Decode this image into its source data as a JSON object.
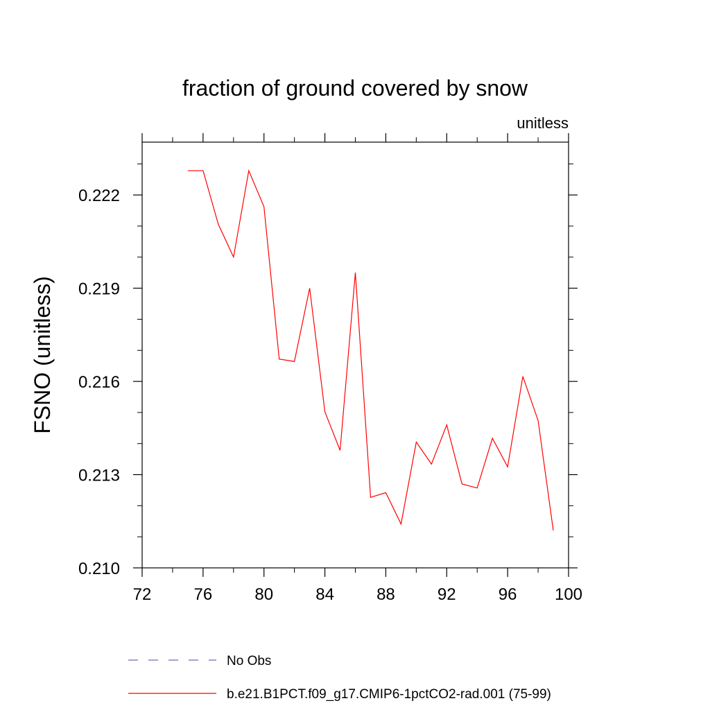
{
  "chart_data": {
    "type": "line",
    "title": "fraction of ground covered by snow",
    "units_label": "unitless",
    "ylabel": "FSNO  (unitless)",
    "xlabel": "",
    "xlim": [
      72,
      100
    ],
    "ylim": [
      0.21,
      0.2237
    ],
    "x_ticks": [
      72,
      76,
      80,
      84,
      88,
      92,
      96,
      100
    ],
    "y_ticks": [
      0.21,
      0.213,
      0.216,
      0.219,
      0.222
    ],
    "y_tick_labels": [
      "0.210",
      "0.213",
      "0.216",
      "0.219",
      "0.222"
    ],
    "grid": false,
    "legend_position": "bottom",
    "series": [
      {
        "name": "No Obs",
        "color": "#6a6ab0",
        "dash": "dashed",
        "x": [],
        "y": []
      },
      {
        "name": "b.e21.B1PCT.f09_g17.CMIP6-1pctCO2-rad.001 (75-99)",
        "color": "#ff0000",
        "dash": "solid",
        "x": [
          75,
          76,
          77,
          78,
          79,
          80,
          81,
          82,
          83,
          84,
          85,
          86,
          87,
          88,
          89,
          90,
          91,
          92,
          93,
          94,
          95,
          96,
          97,
          98,
          99
        ],
        "y": [
          0.22278,
          0.22278,
          0.22106,
          0.22,
          0.22278,
          0.22162,
          0.21672,
          0.21664,
          0.219,
          0.21502,
          0.21378,
          0.2195,
          0.21227,
          0.21242,
          0.21141,
          0.21405,
          0.21334,
          0.2146,
          0.2127,
          0.21257,
          0.21417,
          0.21325,
          0.21616,
          0.21474,
          0.2112
        ]
      }
    ]
  }
}
